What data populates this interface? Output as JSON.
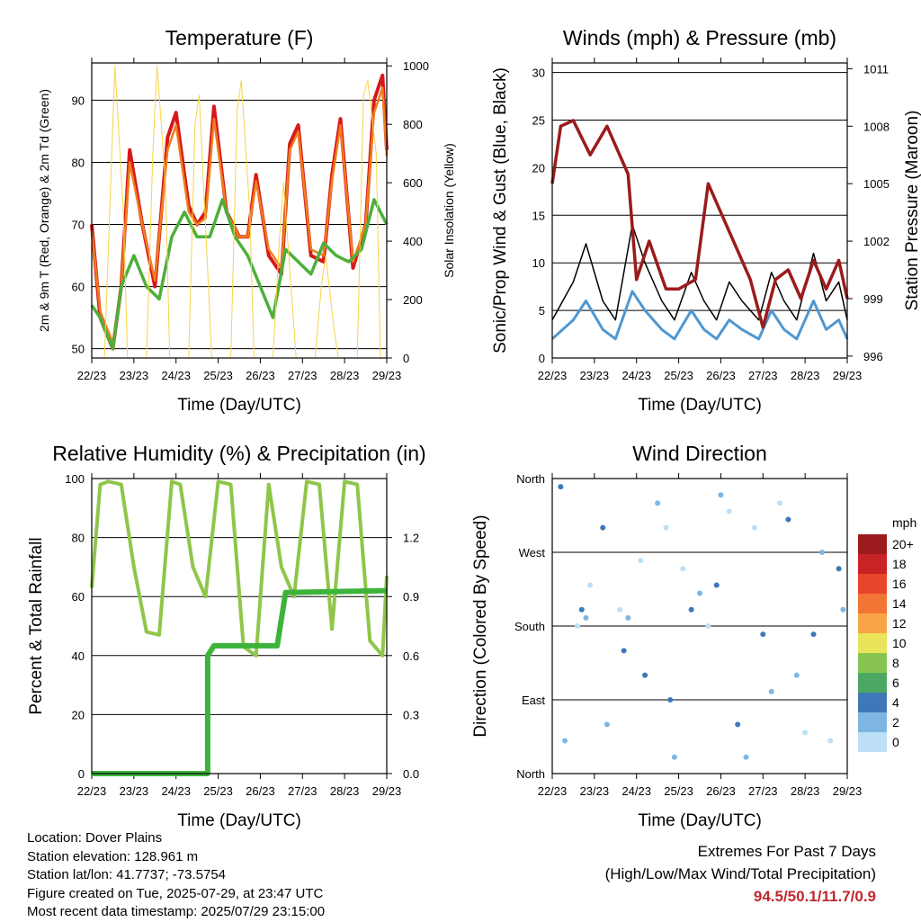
{
  "x_ticks": [
    "22/23",
    "23/23",
    "24/23",
    "25/23",
    "26/23",
    "27/23",
    "28/23",
    "29/23"
  ],
  "x_axis_label": "Time (Day/UTC)",
  "colors": {
    "temp_2m": "#d7191c",
    "temp_9m": "#f07d1a",
    "dewpoint": "#4daf3a",
    "solar": "#f7d44a",
    "wind": "#4f97d0",
    "gust": "#000000",
    "pressure": "#9b1b1b",
    "rh": "#8fc64a",
    "rain": "#3db33a",
    "extremes_values": "#c0262d"
  },
  "chart_data": [
    {
      "id": "temperature",
      "type": "line",
      "title": "Temperature (F)",
      "xlabel": "Time (Day/UTC)",
      "ylabel": "2m & 9m T (Red, Orange) & 2m Td (Green)",
      "ylabel_right": "Solar Insolation (Yellow)",
      "ylim": [
        48.5,
        96
      ],
      "yticks": [
        50,
        60,
        70,
        80,
        90
      ],
      "ylim_right": [
        0,
        1010
      ],
      "yticks_right": [
        0,
        200,
        400,
        600,
        800,
        1000
      ],
      "grid": true,
      "series": [
        {
          "axis": "left",
          "x": [
            0,
            0.2,
            0.5,
            0.7,
            0.9,
            1.2,
            1.5,
            1.8,
            2.0,
            2.3,
            2.5,
            2.7,
            2.9,
            3.2,
            3.5,
            3.7,
            3.9,
            4.2,
            4.5,
            4.7,
            4.9,
            5.2,
            5.5,
            5.7,
            5.9,
            6.2,
            6.5,
            6.7,
            6.9,
            7.0
          ],
          "values": [
            70,
            55,
            50,
            60,
            82,
            70,
            60,
            84,
            88,
            73,
            70,
            72,
            89,
            72,
            68,
            68,
            78,
            65,
            62,
            83,
            86,
            65,
            64,
            78,
            87,
            63,
            70,
            90,
            94,
            82
          ]
        },
        {
          "axis": "left",
          "x": [
            0,
            0.2,
            0.5,
            0.7,
            0.9,
            1.2,
            1.5,
            1.8,
            2.0,
            2.3,
            2.5,
            2.7,
            2.9,
            3.2,
            3.5,
            3.7,
            3.9,
            4.2,
            4.5,
            4.7,
            4.9,
            5.2,
            5.5,
            5.7,
            5.9,
            6.2,
            6.5,
            6.7,
            6.9,
            7.0
          ],
          "values": [
            69,
            56,
            51,
            60,
            80,
            70,
            61,
            82,
            86,
            72,
            70,
            71,
            87,
            72,
            68,
            68,
            77,
            66,
            63,
            82,
            85,
            66,
            65,
            77,
            86,
            64,
            70,
            88,
            92,
            81
          ]
        },
        {
          "axis": "left",
          "x": [
            0,
            0.2,
            0.5,
            0.7,
            1.0,
            1.3,
            1.6,
            1.9,
            2.2,
            2.5,
            2.8,
            3.1,
            3.4,
            3.7,
            4.0,
            4.3,
            4.6,
            4.9,
            5.2,
            5.5,
            5.8,
            6.1,
            6.4,
            6.7,
            7.0
          ],
          "values": [
            57,
            55,
            50,
            60,
            65,
            60,
            58,
            68,
            72,
            68,
            68,
            74,
            68,
            65,
            60,
            55,
            66,
            64,
            62,
            67,
            65,
            64,
            66,
            74,
            70
          ]
        },
        {
          "axis": "right",
          "x": [
            0,
            0.3,
            0.45,
            0.55,
            0.75,
            0.85,
            1.3,
            1.45,
            1.55,
            1.75,
            1.85,
            2.3,
            2.45,
            2.55,
            2.75,
            2.85,
            3.3,
            3.45,
            3.55,
            3.75,
            3.85,
            4.3,
            4.45,
            4.55,
            4.75,
            4.85,
            5.3,
            5.45,
            5.55,
            5.75,
            5.85,
            6.3,
            6.45,
            6.55,
            6.75,
            6.85,
            7.0
          ],
          "values": [
            0,
            0,
            600,
            1000,
            500,
            0,
            0,
            700,
            1000,
            600,
            0,
            0,
            800,
            900,
            300,
            0,
            0,
            850,
            950,
            500,
            0,
            0,
            400,
            600,
            200,
            0,
            0,
            250,
            350,
            100,
            0,
            0,
            900,
            950,
            700,
            0,
            0
          ]
        }
      ]
    },
    {
      "id": "winds",
      "type": "line",
      "title": "Winds (mph) & Pressure (mb)",
      "xlabel": "Time (Day/UTC)",
      "ylabel": "Sonic/Prop Wind & Gust (Blue, Black)",
      "ylabel_right": "Station Pressure (Maroon)",
      "ylim": [
        0,
        31
      ],
      "yticks": [
        0,
        5,
        10,
        15,
        20,
        25,
        30
      ],
      "ylim_right": [
        995.9,
        1011.3
      ],
      "yticks_right": [
        996,
        999,
        1002,
        1005,
        1008,
        1011
      ],
      "grid": true,
      "series": [
        {
          "axis": "left",
          "x": [
            0,
            0.5,
            0.8,
            1.2,
            1.5,
            1.9,
            2.2,
            2.6,
            2.9,
            3.3,
            3.6,
            3.9,
            4.2,
            4.5,
            4.9,
            5.2,
            5.5,
            5.8,
            6.2,
            6.5,
            6.8,
            7.0
          ],
          "values": [
            2,
            4,
            6,
            3,
            2,
            7,
            5,
            3,
            2,
            5,
            3,
            2,
            4,
            3,
            2,
            5,
            3,
            2,
            6,
            3,
            4,
            2
          ]
        },
        {
          "axis": "left",
          "x": [
            0,
            0.5,
            0.8,
            1.2,
            1.5,
            1.9,
            2.2,
            2.6,
            2.9,
            3.3,
            3.6,
            3.9,
            4.2,
            4.5,
            4.9,
            5.2,
            5.5,
            5.8,
            6.2,
            6.5,
            6.8,
            7.0
          ],
          "values": [
            4,
            8,
            12,
            6,
            4,
            14,
            10,
            6,
            4,
            9,
            6,
            4,
            8,
            6,
            4,
            9,
            6,
            4,
            11,
            6,
            8,
            4
          ]
        },
        {
          "axis": "right",
          "x": [
            0,
            0.2,
            0.5,
            0.9,
            1.3,
            1.8,
            2.0,
            2.3,
            2.7,
            3.0,
            3.4,
            3.7,
            4.0,
            4.3,
            4.7,
            5.0,
            5.3,
            5.6,
            5.9,
            6.2,
            6.5,
            6.8,
            7.0
          ],
          "values": [
            1005,
            1008,
            1008.3,
            1006.5,
            1008,
            1005.5,
            1000,
            1002,
            999.5,
            999.5,
            1000,
            1005,
            1003.5,
            1002,
            1000,
            997.5,
            1000,
            1000.5,
            999,
            1001,
            999.5,
            1001,
            999
          ]
        }
      ]
    },
    {
      "id": "rh_precip",
      "type": "line",
      "title": "Relative Humidity (%) & Precipitation (in)",
      "xlabel": "Time (Day/UTC)",
      "ylabel": "Percent & Total Rainfall",
      "ylim": [
        0,
        100
      ],
      "yticks": [
        0,
        20,
        40,
        60,
        80,
        100
      ],
      "ylim_right": [
        0,
        1.5
      ],
      "yticks_right": [
        "0.0",
        "0.3",
        "0.6",
        "0.9",
        "1.2"
      ],
      "grid": true,
      "series": [
        {
          "axis": "left",
          "x": [
            0,
            0.2,
            0.4,
            0.7,
            1.0,
            1.3,
            1.6,
            1.9,
            2.1,
            2.4,
            2.7,
            3.0,
            3.3,
            3.6,
            3.9,
            4.2,
            4.5,
            4.8,
            5.1,
            5.4,
            5.7,
            6.0,
            6.3,
            6.6,
            6.9,
            7.0
          ],
          "values": [
            63,
            98,
            99,
            98,
            70,
            48,
            47,
            99,
            98,
            70,
            60,
            99,
            98,
            43,
            40,
            98,
            70,
            60,
            99,
            98,
            49,
            99,
            98,
            45,
            40,
            67
          ]
        },
        {
          "axis": "right",
          "x": [
            0,
            2.75,
            2.75,
            2.9,
            4.4,
            4.6,
            7.0
          ],
          "values": [
            0,
            0,
            0.6,
            0.65,
            0.65,
            0.92,
            0.93
          ]
        }
      ]
    },
    {
      "id": "wind_direction",
      "type": "scatter",
      "title": "Wind Direction",
      "xlabel": "Time (Day/UTC)",
      "ylabel": "Direction (Colored By Speed)",
      "ylim": [
        0,
        360
      ],
      "yticks": [
        "North",
        "East",
        "South",
        "West",
        "North"
      ],
      "grid": true,
      "colorbar": {
        "title": "mph",
        "labels": [
          "20+",
          "18",
          "16",
          "14",
          "12",
          "10",
          "8",
          "6",
          "4",
          "2",
          "0"
        ],
        "colors": [
          "#9c1b1d",
          "#c82325",
          "#e6462a",
          "#f27535",
          "#f8a446",
          "#e9e45a",
          "#87c550",
          "#4aa863",
          "#3e78b8",
          "#7db6e3",
          "#bde0f6"
        ]
      },
      "series": [
        {
          "name": "",
          "x": [
            0.2,
            0.3,
            0.6,
            0.7,
            0.8,
            0.9,
            1.2,
            1.3,
            1.6,
            1.7,
            1.8,
            2.1,
            2.2,
            2.5,
            2.7,
            2.8,
            2.9,
            3.1,
            3.3,
            3.5,
            3.7,
            3.9,
            4.0,
            4.2,
            4.4,
            4.6,
            4.8,
            5.0,
            5.2,
            5.4,
            5.6,
            5.8,
            6.0,
            6.2,
            6.4,
            6.6,
            6.8,
            6.9
          ],
          "values": [
            350,
            40,
            180,
            200,
            190,
            230,
            300,
            60,
            200,
            150,
            190,
            260,
            120,
            330,
            300,
            90,
            20,
            250,
            200,
            220,
            180,
            230,
            340,
            320,
            60,
            20,
            300,
            170,
            100,
            330,
            310,
            120,
            50,
            170,
            270,
            40,
            250,
            200
          ]
        }
      ]
    }
  ],
  "info": {
    "location": "Location: Dover Plains",
    "elevation": "Station elevation: 128.961 m",
    "latlon": "Station lat/lon: 41.7737; -73.5754",
    "created": "Figure created on Tue, 2025-07-29, at 23:47 UTC",
    "recent": "Most recent data timestamp: 2025/07/29 23:15:00"
  },
  "extremes": {
    "line1": "Extremes For Past 7 Days",
    "line2": "(High/Low/Max Wind/Total Precipitation)",
    "values": "94.5/50.1/11.7/0.9"
  }
}
